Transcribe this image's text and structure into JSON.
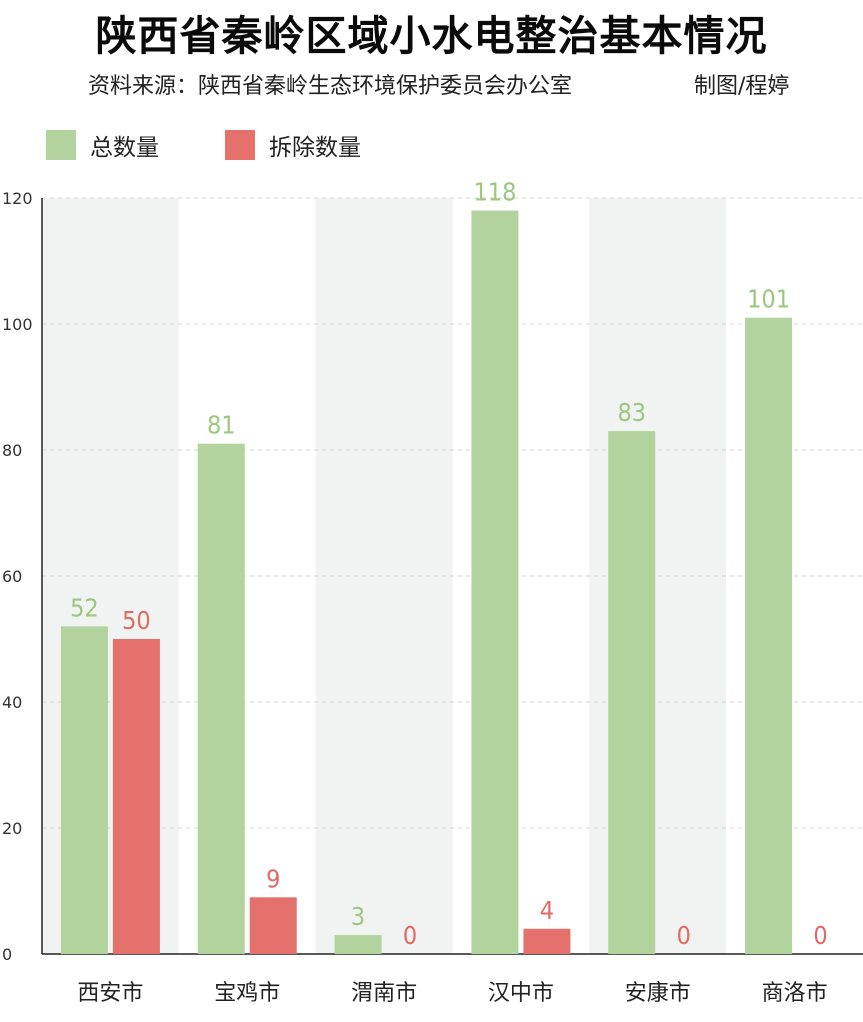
{
  "title": "陕西省秦岭区域小水电整治基本情况",
  "subtitle": "资料来源：陕西省秦岭生态环境保护委员会办公室",
  "credit": "制图/程婷",
  "colors": {
    "total": "#b3d39e",
    "removed": "#e4716c",
    "band": "#f1f3f2",
    "grid": "#d6d6d6",
    "axis": "#222222"
  },
  "chart_data": {
    "type": "bar",
    "categories": [
      "西安市",
      "宝鸡市",
      "渭南市",
      "汉中市",
      "安康市",
      "商洛市"
    ],
    "series": [
      {
        "name": "总数量",
        "values": [
          52,
          81,
          3,
          118,
          83,
          101
        ]
      },
      {
        "name": "拆除数量",
        "values": [
          50,
          9,
          0,
          4,
          0,
          0
        ]
      }
    ],
    "ylim": [
      0,
      120
    ],
    "yticks": [
      0,
      20,
      40,
      60,
      80,
      100,
      120
    ],
    "grid": true,
    "legend": "top-left"
  }
}
